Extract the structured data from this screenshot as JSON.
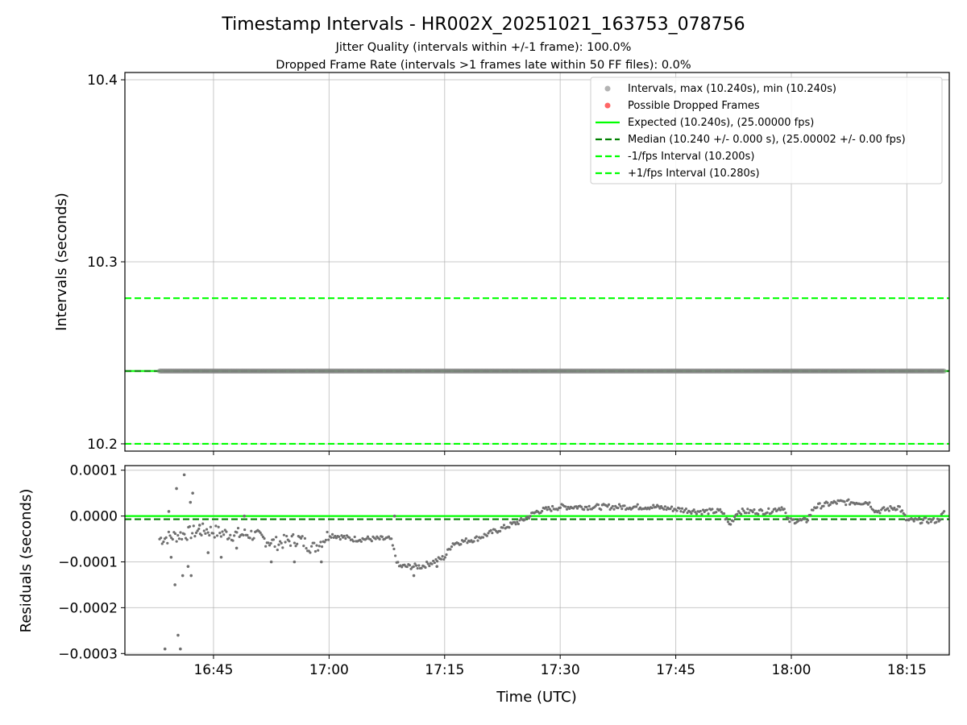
{
  "chart_data": [
    {
      "type": "scatter",
      "title": "Timestamp Intervals - HR002X_20251021_163753_078756",
      "subtitle_lines": [
        "Jitter Quality (intervals within +/-1 frame): 100.0%",
        "Dropped Frame Rate (intervals >1 frames late within 50 FF files): 0.0%"
      ],
      "xlabel": "",
      "ylabel": "Intervals (seconds)",
      "ylim": [
        10.196,
        10.404
      ],
      "yticks": [
        10.2,
        10.3,
        10.4
      ],
      "ytick_labels": [
        "10.2",
        "10.3",
        "10.4"
      ],
      "grid": true,
      "legend_position": "top-right",
      "series": [
        {
          "name": "Intervals, max (10.240s), min (10.240s)",
          "kind": "scatter",
          "color": "#808080",
          "x_start": "16:38",
          "x_end": "18:20",
          "y": 10.24
        },
        {
          "name": "Possible Dropped Frames",
          "kind": "scatter",
          "color": "#ff0000",
          "points": []
        },
        {
          "name": "Expected (10.240s), (25.00000 fps)",
          "kind": "hline",
          "color": "#00ff00",
          "dash": "solid",
          "y": 10.24
        },
        {
          "name": "Median (10.240 +/- 0.000 s), (25.00002 +/- 0.00 fps)",
          "kind": "hline",
          "color": "#008000",
          "dash": "dashed",
          "y": 10.24
        },
        {
          "name": "-1/fps Interval (10.200s)",
          "kind": "hline",
          "color": "#00ff00",
          "dash": "dashed",
          "y": 10.2
        },
        {
          "name": "+1/fps Interval (10.280s)",
          "kind": "hline",
          "color": "#00ff00",
          "dash": "dashed",
          "y": 10.28
        }
      ]
    },
    {
      "type": "scatter",
      "xlabel": "Time (UTC)",
      "ylabel": "Residuals (seconds)",
      "xlim": [
        "16:33:30",
        "18:20:30"
      ],
      "xticks": [
        "16:45",
        "17:00",
        "17:15",
        "17:30",
        "17:45",
        "18:00",
        "18:15"
      ],
      "ylim": [
        -0.000303,
        0.00011
      ],
      "yticks": [
        0.0001,
        0.0,
        -0.0001,
        -0.0002,
        -0.0003
      ],
      "ytick_labels": [
        "0.0001",
        "0.0000",
        "−0.0001",
        "−0.0002",
        "−0.0003"
      ],
      "grid": true,
      "hlines": [
        {
          "y": 0.0,
          "color": "#00ff00",
          "dash": "solid"
        },
        {
          "y": -7e-06,
          "color": "#008000",
          "dash": "dashed"
        }
      ],
      "series": [
        {
          "name": "",
          "color": "#707070",
          "trend": [
            [
              "16:38",
              -5e-05
            ],
            [
              "16:41",
              -4e-05
            ],
            [
              "16:44",
              -3e-05
            ],
            [
              "16:47",
              -4e-05
            ],
            [
              "16:50",
              -4e-05
            ],
            [
              "16:53",
              -6e-05
            ],
            [
              "16:56",
              -5e-05
            ],
            [
              "16:58",
              -7e-05
            ],
            [
              "17:00",
              -4e-05
            ],
            [
              "17:03",
              -5e-05
            ],
            [
              "17:05",
              -5e-05
            ],
            [
              "17:08",
              -5e-05
            ],
            [
              "17:09",
              -0.00011
            ],
            [
              "17:12",
              -0.00011
            ],
            [
              "17:15",
              -9e-05
            ],
            [
              "17:16",
              -6e-05
            ],
            [
              "17:19",
              -5e-05
            ],
            [
              "17:22",
              -3e-05
            ],
            [
              "17:25",
              -1e-05
            ],
            [
              "17:27",
              1e-05
            ],
            [
              "17:30",
              2e-05
            ],
            [
              "17:36",
              2e-05
            ],
            [
              "17:42",
              2e-05
            ],
            [
              "17:48",
              1e-05
            ],
            [
              "17:51",
              1e-05
            ],
            [
              "17:52",
              -2e-05
            ],
            [
              "17:53",
              1e-05
            ],
            [
              "17:57",
              1e-05
            ],
            [
              "17:59",
              2e-05
            ],
            [
              "17:59.5",
              -1e-05
            ],
            [
              "18:02",
              -1e-05
            ],
            [
              "18:03",
              2e-05
            ],
            [
              "18:06",
              3e-05
            ],
            [
              "18:10",
              3e-05
            ],
            [
              "18:11",
              1e-05
            ],
            [
              "18:14",
              2e-05
            ],
            [
              "18:15",
              -1e-05
            ],
            [
              "18:19",
              -1e-05
            ],
            [
              "18:20",
              1e-05
            ]
          ],
          "outliers": [
            [
              "16:38.7",
              -0.00029
            ],
            [
              "16:39.5",
              -9e-05
            ],
            [
              "16:40",
              -0.00015
            ],
            [
              "16:40.4",
              -0.00026
            ],
            [
              "16:40.7",
              -0.00029
            ],
            [
              "16:39.2",
              1e-05
            ],
            [
              "16:40.2",
              6e-05
            ],
            [
              "16:41.2",
              9e-05
            ],
            [
              "16:41",
              -0.00013
            ],
            [
              "16:41.7",
              -0.00011
            ],
            [
              "16:42.1",
              -0.00013
            ],
            [
              "16:42.3",
              5e-05
            ],
            [
              "16:42",
              3e-05
            ],
            [
              "16:43.2",
              -2e-05
            ],
            [
              "16:44.3",
              -8e-05
            ],
            [
              "16:46",
              -9e-05
            ],
            [
              "16:48",
              -7e-05
            ],
            [
              "16:49",
              0.0
            ],
            [
              "16:55.5",
              -0.0001
            ],
            [
              "16:52.5",
              -0.0001
            ],
            [
              "16:59",
              -0.0001
            ],
            [
              "17:11",
              -0.00013
            ],
            [
              "17:14",
              -0.00011
            ],
            [
              "17:08.5",
              0.0
            ]
          ]
        }
      ]
    }
  ]
}
